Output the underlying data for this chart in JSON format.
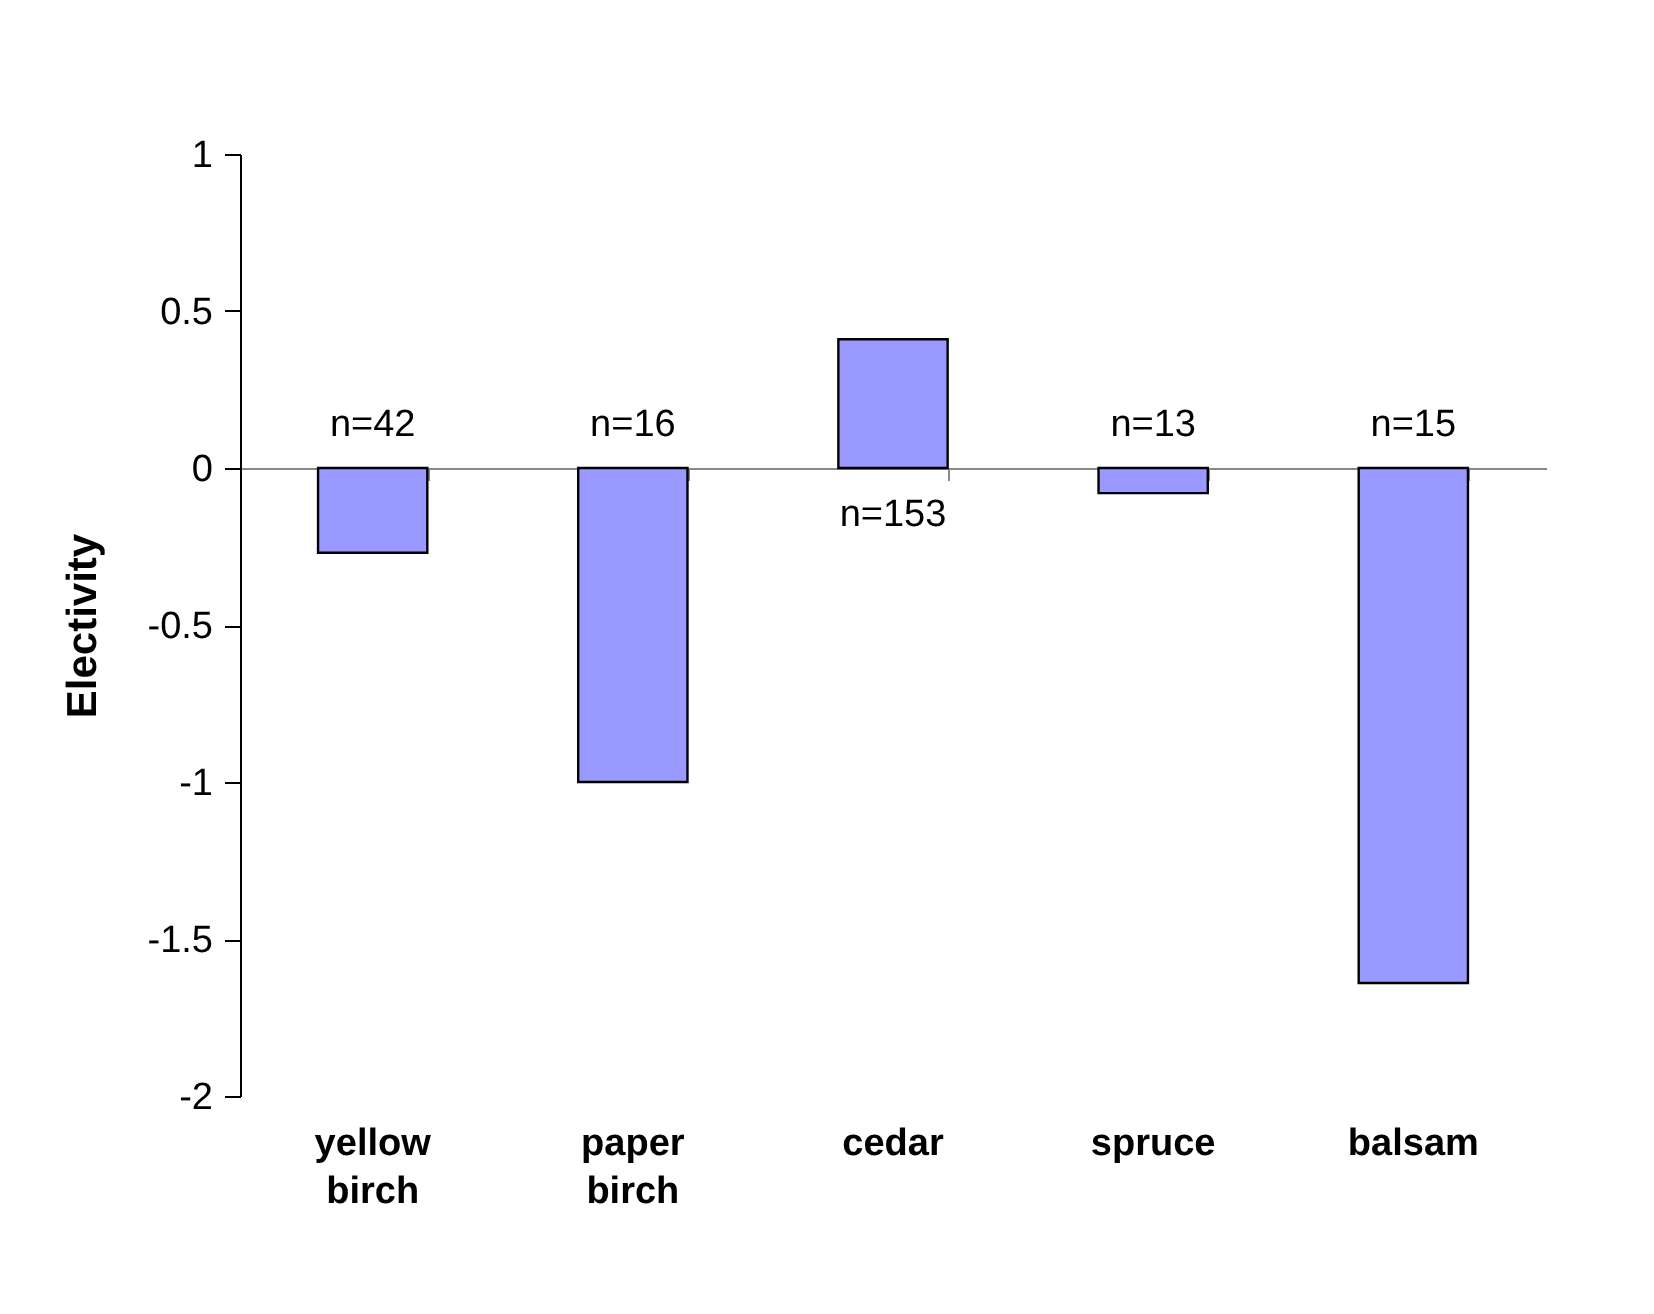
{
  "chart_data": {
    "type": "bar",
    "ylabel": "Electivity",
    "categories": [
      "yellow birch",
      "paper birch",
      "cedar",
      "spruce",
      "balsam"
    ],
    "values": [
      -0.27,
      -1.0,
      0.41,
      -0.08,
      -1.64
    ],
    "annotations": [
      "n=42",
      "n=16",
      "n=153",
      "n=13",
      "n=15"
    ],
    "color": "#9999ff",
    "ylim": [
      -2,
      1
    ],
    "yticks": [
      -2,
      -1.5,
      -1,
      -0.5,
      0,
      0.5,
      1
    ]
  }
}
